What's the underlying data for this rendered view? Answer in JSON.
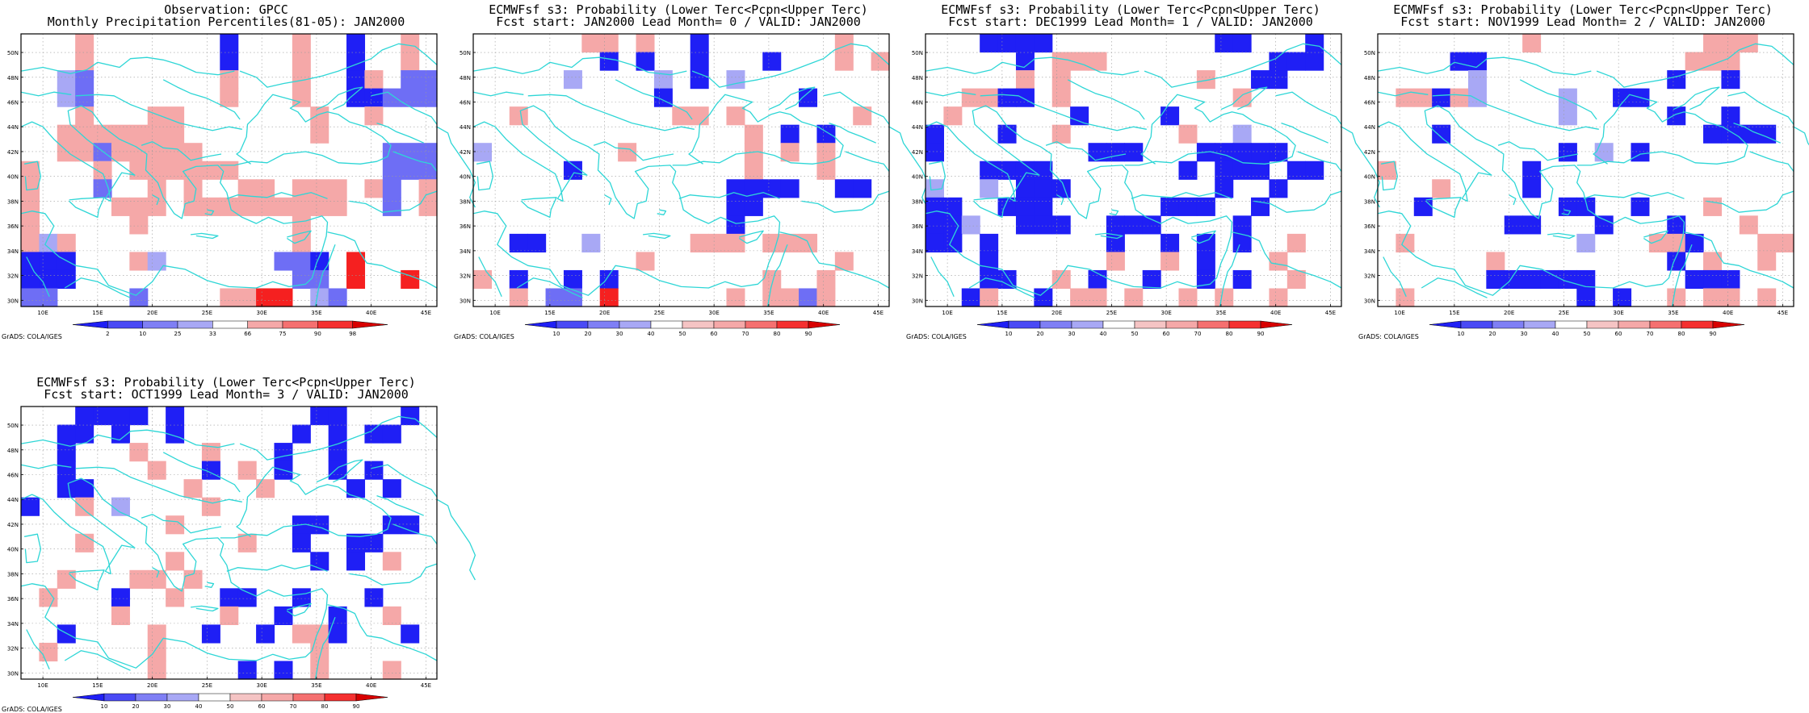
{
  "credit": "GrADS: COLA/IGES",
  "lon_labels": [
    "10E",
    "15E",
    "20E",
    "25E",
    "30E",
    "35E",
    "40E",
    "45E"
  ],
  "lat_labels": [
    "30N",
    "32N",
    "34N",
    "36N",
    "38N",
    "40N",
    "42N",
    "44N",
    "46N",
    "48N",
    "50N"
  ],
  "colors": {
    "blue_dark": "#1f1ff5",
    "blue_mid": "#6e6ef5",
    "blue_light": "#a8a8f5",
    "red_light": "#f5a8a8",
    "red_mid": "#f57070",
    "red_dark": "#f52020",
    "red_deep": "#d80000",
    "coast": "#2ed6d6"
  },
  "panels": [
    {
      "title1": "Observation: GPCC",
      "title2": "Monthly Precipitation Percentiles(81-05): JAN2000",
      "colorbar": {
        "labels": [
          "2",
          "10",
          "25",
          "33",
          "66",
          "75",
          "90",
          "98"
        ],
        "colors": [
          "#1f1ff5",
          "#4a4af5",
          "#7f7ff5",
          "#a8a8f5",
          "#ffffff",
          "#f5a8a8",
          "#f57070",
          "#f53030",
          "#d80000"
        ]
      },
      "grid": [
        "...3.......d...3..d..3.",
        "...3.......d...3..d..3.",
        "..12.......3...3..d3.22",
        "..12.......3...3..dd222",
        "...3...33.......3..3...",
        "..3333333.......3......",
        "..33233333..........222",
        "3...3.333333........222",
        "3...2..3.3..33.333.32.3",
        "3....333.333333333..2.3",
        "c.....c........3.......",
        "c1c............3.......",
        "ddd...c1......22d.5....",
        "ddd............22.5..5.",
        "bb....2....3355.12....."
      ]
    },
    {
      "title1": "ECMWFsf s3: Probability (Lower Terc<Pcpn<Upper Terc)",
      "title2": "Fcst start: JAN2000  Lead Month= 0 / VALID: JAN2000",
      "colorbar": {
        "labels": [
          "10",
          "20",
          "30",
          "40",
          "50",
          "60",
          "70",
          "80",
          "90"
        ],
        "colors": [
          "#1f1ff5",
          "#4a4af5",
          "#7f7ff5",
          "#a8a8f5",
          "#ffffff",
          "#f5c4c4",
          "#f5a8a8",
          "#f57070",
          "#f53030",
          "#d80000"
        ]
      },
      "grid": [
        "......cc.c..d.......c..",
        ".......d.d..d...d...c.c",
        ".....1....1.d.1........",
        "..........d.......d....",
        "..c........cc.c......c.",
        "...............c.d.d...",
        "1.......c......3.3.3...",
        ".....d.........3...3...",
        "..............dddd..dd.",
        "..............dd.......",
        "..............d........",
        "..dd..1.....ccc.ccc....",
        ".........3..........c..",
        "c.d..d.d........c..c...",
        "..3.22.5......c.cc2c..."
      ]
    },
    {
      "title1": "ECMWFsf s3: Probability (Lower Terc<Pcpn<Upper Terc)",
      "title2": "Fcst start: DEC1999  Lead Month= 1 / VALID: JAN2000",
      "colorbar": {
        "labels": [
          "10",
          "20",
          "30",
          "40",
          "50",
          "60",
          "70",
          "80",
          "90"
        ],
        "colors": [
          "#1f1ff5",
          "#4a4af5",
          "#7f7ff5",
          "#a8a8f5",
          "#ffffff",
          "#f5c4c4",
          "#f5a8a8",
          "#f57070",
          "#f53030",
          "#d80000"
        ]
      },
      "grid": [
        "...dddd.........dd...d.",
        ".....d.ccc.........ddd.",
        ".....3.3.......3..dd...",
        "..ccdd.c.........c.....",
        ".c......d....d.........",
        "d...d..3......c..1.....",
        "d........ddd...ddddd...",
        "...dddd.......d.ddd.dd.",
        "1..1.ddd........d..d...",
        "dd..ddd......ddd..d....",
        "dd1..ddd..ddd....d.....",
        "dd.d......d..d.d.d..3..",
        "...d......3..3.d...c...",
        "...dd..3.d..d..d.d..3..",
        "..d3..d.cc.c..3.3..c..."
      ]
    },
    {
      "title1": "ECMWFsf s3: Probability (Lower Terc<Pcpn<Upper Terc)",
      "title2": "Fcst start: NOV1999  Lead Month= 2 / VALID: JAN2000",
      "colorbar": {
        "labels": [
          "10",
          "20",
          "30",
          "40",
          "50",
          "60",
          "70",
          "80",
          "90"
        ],
        "colors": [
          "#1f1ff5",
          "#4a4af5",
          "#7f7ff5",
          "#a8a8f5",
          "#ffffff",
          "#f5c4c4",
          "#f5a8a8",
          "#f57070",
          "#f53030",
          "#d80000"
        ]
      },
      "grid": [
        "........c.........ccc..",
        "....dd...........ccc...",
        ".....1..........d..d...",
        ".ccdc1....1..dd........",
        "..........1.....d..d...",
        "...d..............dddd.",
        "..........d.1.d.........",
        "3.......d..............",
        "...c....d..............",
        "..d.......dd..d...c....",
        ".......dd...d...d...c..",
        ".c.........1...ccd...ccc",
        "......c.........d.c..c.",
        "......dddddd.....ddd...",
        ".c.........d.d..c.cc.c."
      ]
    },
    {
      "title1": "ECMWFsf s3: Probability (Lower Terc<Pcpn<Upper Terc)",
      "title2": "Fcst start: OCT1999  Lead Month= 3 / VALID: JAN2000",
      "colorbar": {
        "labels": [
          "10",
          "20",
          "30",
          "40",
          "50",
          "60",
          "70",
          "80",
          "90"
        ],
        "colors": [
          "#1f1ff5",
          "#4a4af5",
          "#7f7ff5",
          "#a8a8f5",
          "#ffffff",
          "#f5c4c4",
          "#f5a8a8",
          "#f57070",
          "#f53030",
          "#d80000"
        ]
      },
      "grid": [
        "...dddd.d.......dd...d.",
        "..dd.d..d......d.d.dd..",
        "..d...c...c...d..d.....",
        "..d....c..d.c.d..d.d..",
        "..dd.....c...c....d.d..",
        "d..3.1....c............",
        "........3......dd...dd.",
        "...c........3..d..dd...",
        "........c.......d.d.3...",
        "..c...cc.3.............",
        ".c...d..3..dd..d...d...",
        ".....3.....c..d..d..c..",
        "..d....3..d..d.ccd...d.",
        ".c.....c........c......",
        ".......c....d.d.c...c.."
      ]
    }
  ]
}
